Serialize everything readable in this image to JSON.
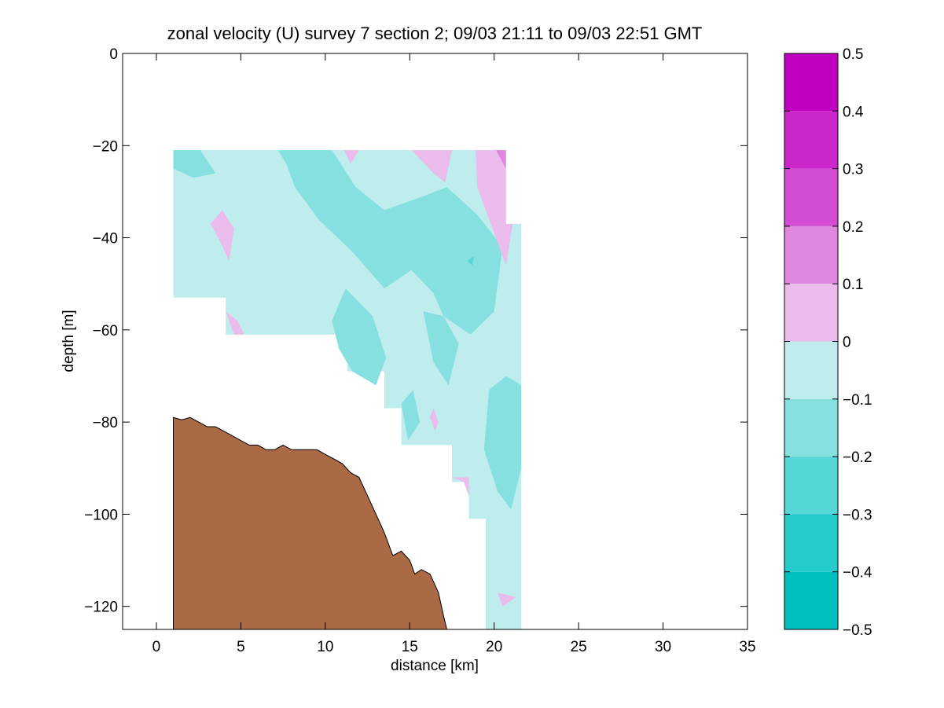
{
  "chart_data": {
    "type": "heatmap",
    "title": "zonal velocity (U) survey 7 section 2; 09/03 21:11 to 09/03 22:51 GMT",
    "xlabel": "distance [km]",
    "ylabel": "depth [m]",
    "xlim": [
      -2,
      35
    ],
    "ylim": [
      -125,
      0
    ],
    "xticks": [
      0,
      5,
      10,
      15,
      20,
      25,
      30,
      35
    ],
    "yticks": [
      0,
      -20,
      -40,
      -60,
      -80,
      -100,
      -120
    ],
    "colorbar": {
      "ticks": [
        0.5,
        0.4,
        0.3,
        0.2,
        0.1,
        0,
        -0.1,
        -0.2,
        -0.3,
        -0.4,
        -0.5
      ],
      "tick_labels": [
        "0.5",
        "0.4",
        "0.3",
        "0.2",
        "0.1",
        "0",
        "−0.1",
        "−0.2",
        "−0.3",
        "−0.4",
        "−0.5"
      ],
      "bins": [
        {
          "from": 0.4,
          "to": 0.5,
          "color": "#bf00bf"
        },
        {
          "from": 0.3,
          "to": 0.4,
          "color": "#cb26cb"
        },
        {
          "from": 0.2,
          "to": 0.3,
          "color": "#d34cd3"
        },
        {
          "from": 0.1,
          "to": 0.2,
          "color": "#df86df"
        },
        {
          "from": 0.0,
          "to": 0.1,
          "color": "#ebbceb"
        },
        {
          "from": -0.1,
          "to": 0.0,
          "color": "#bfecec"
        },
        {
          "from": -0.2,
          "to": -0.1,
          "color": "#86e0e0"
        },
        {
          "from": -0.3,
          "to": -0.2,
          "color": "#56d6d6"
        },
        {
          "from": -0.4,
          "to": -0.3,
          "color": "#26cbcb"
        },
        {
          "from": -0.5,
          "to": -0.4,
          "color": "#00bfbf"
        }
      ]
    },
    "data_region": [
      [
        1,
        -21
      ],
      [
        20.7,
        -21
      ],
      [
        20.7,
        -37
      ],
      [
        21.6,
        -37
      ],
      [
        21.6,
        -125
      ],
      [
        19.5,
        -125
      ],
      [
        19.5,
        -101
      ],
      [
        18.5,
        -101
      ],
      [
        18.5,
        -93
      ],
      [
        17.5,
        -93
      ],
      [
        17.5,
        -85
      ],
      [
        14.5,
        -85
      ],
      [
        14.5,
        -77
      ],
      [
        13.5,
        -77
      ],
      [
        13.5,
        -69
      ],
      [
        11.3,
        -69
      ],
      [
        11.3,
        -61
      ],
      [
        4.1,
        -61
      ],
      [
        4.1,
        -53
      ],
      [
        1,
        -53
      ]
    ],
    "regions": [
      {
        "value_bin": -0.15,
        "points": [
          [
            7.2,
            -21
          ],
          [
            10.4,
            -21
          ],
          [
            11.8,
            -29
          ],
          [
            13.5,
            -34
          ],
          [
            15.8,
            -31
          ],
          [
            17.2,
            -29
          ],
          [
            19.0,
            -35
          ],
          [
            20.5,
            -42
          ],
          [
            20.0,
            -56
          ],
          [
            18.6,
            -61
          ],
          [
            17.0,
            -57
          ],
          [
            16.4,
            -52
          ],
          [
            15.1,
            -47
          ],
          [
            13.5,
            -51
          ],
          [
            11.6,
            -43
          ],
          [
            9.6,
            -36
          ],
          [
            8.2,
            -29
          ],
          [
            7.7,
            -24
          ]
        ]
      },
      {
        "value_bin": -0.15,
        "points": [
          [
            1,
            -21
          ],
          [
            2.6,
            -21
          ],
          [
            3.5,
            -26
          ],
          [
            2.2,
            -27
          ],
          [
            1,
            -25
          ]
        ]
      },
      {
        "value_bin": -0.15,
        "points": [
          [
            10.4,
            -58
          ],
          [
            11.2,
            -51
          ],
          [
            12.8,
            -57
          ],
          [
            13.6,
            -66
          ],
          [
            13.0,
            -72
          ],
          [
            11.6,
            -69
          ],
          [
            10.8,
            -64
          ]
        ]
      },
      {
        "value_bin": -0.15,
        "points": [
          [
            15.8,
            -56
          ],
          [
            17.0,
            -57
          ],
          [
            17.9,
            -63
          ],
          [
            17.3,
            -72
          ],
          [
            16.4,
            -67
          ]
        ]
      },
      {
        "value_bin": -0.15,
        "points": [
          [
            19.7,
            -73
          ],
          [
            20.7,
            -70
          ],
          [
            21.6,
            -72
          ],
          [
            21.6,
            -90
          ],
          [
            21.0,
            -99
          ],
          [
            20.2,
            -95
          ],
          [
            19.4,
            -86
          ]
        ]
      },
      {
        "value_bin": -0.15,
        "points": [
          [
            14.5,
            -76
          ],
          [
            15.2,
            -73
          ],
          [
            15.6,
            -80
          ],
          [
            14.9,
            -84
          ]
        ]
      },
      {
        "value_bin": -0.25,
        "points": [
          [
            18.4,
            -45
          ],
          [
            18.8,
            -44
          ],
          [
            18.7,
            -46
          ]
        ]
      },
      {
        "value_bin": 0.05,
        "points": [
          [
            15.1,
            -21
          ],
          [
            16.4,
            -21
          ],
          [
            17.5,
            -21
          ],
          [
            17.1,
            -28
          ],
          [
            16.4,
            -26
          ],
          [
            15.9,
            -24
          ]
        ]
      },
      {
        "value_bin": 0.05,
        "points": [
          [
            18.9,
            -21
          ],
          [
            20.7,
            -21
          ],
          [
            20.7,
            -37
          ],
          [
            21.1,
            -37
          ],
          [
            20.7,
            -46
          ],
          [
            19.8,
            -37
          ],
          [
            19.0,
            -29
          ]
        ]
      },
      {
        "value_bin": 0.15,
        "points": [
          [
            20.1,
            -21
          ],
          [
            20.7,
            -21
          ],
          [
            20.7,
            -25
          ]
        ]
      },
      {
        "value_bin": 0.05,
        "points": [
          [
            3.2,
            -37
          ],
          [
            3.9,
            -34
          ],
          [
            4.6,
            -38
          ],
          [
            4.3,
            -45
          ],
          [
            3.8,
            -41
          ]
        ]
      },
      {
        "value_bin": 0.05,
        "points": [
          [
            11.1,
            -21
          ],
          [
            12.0,
            -21
          ],
          [
            11.5,
            -24
          ]
        ]
      },
      {
        "value_bin": 0.05,
        "points": [
          [
            4.1,
            -56
          ],
          [
            4.8,
            -58
          ],
          [
            5.2,
            -61
          ],
          [
            4.6,
            -61
          ]
        ]
      },
      {
        "value_bin": 0.05,
        "points": [
          [
            17.5,
            -92
          ],
          [
            18.5,
            -92
          ],
          [
            18.5,
            -96
          ],
          [
            18.2,
            -93
          ]
        ]
      },
      {
        "value_bin": 0.05,
        "points": [
          [
            20.2,
            -117
          ],
          [
            21.3,
            -118
          ],
          [
            20.5,
            -120
          ]
        ]
      },
      {
        "value_bin": 0.05,
        "points": [
          [
            16.4,
            -77
          ],
          [
            16.7,
            -80
          ],
          [
            16.5,
            -82
          ],
          [
            16.2,
            -79
          ]
        ]
      }
    ],
    "bathymetry": {
      "color": "#a96a45",
      "points": [
        [
          1,
          -79
        ],
        [
          1.5,
          -79.5
        ],
        [
          2,
          -79
        ],
        [
          2.5,
          -80
        ],
        [
          3.0,
          -81
        ],
        [
          3.5,
          -81
        ],
        [
          4.0,
          -82
        ],
        [
          4.5,
          -83
        ],
        [
          5.0,
          -84
        ],
        [
          5.5,
          -85
        ],
        [
          6.0,
          -85
        ],
        [
          6.5,
          -86
        ],
        [
          7.0,
          -86
        ],
        [
          7.5,
          -85
        ],
        [
          8.0,
          -86
        ],
        [
          9.0,
          -86
        ],
        [
          9.5,
          -86
        ],
        [
          10.0,
          -87
        ],
        [
          10.5,
          -88
        ],
        [
          11.0,
          -89
        ],
        [
          11.5,
          -91
        ],
        [
          12.0,
          -92
        ],
        [
          12.5,
          -96
        ],
        [
          13.0,
          -100
        ],
        [
          13.5,
          -104
        ],
        [
          14.0,
          -109
        ],
        [
          14.5,
          -108
        ],
        [
          15.0,
          -110
        ],
        [
          15.3,
          -113
        ],
        [
          15.7,
          -112
        ],
        [
          16.2,
          -113
        ],
        [
          16.7,
          -117
        ],
        [
          17.0,
          -122
        ],
        [
          17.2,
          -125
        ]
      ]
    }
  }
}
